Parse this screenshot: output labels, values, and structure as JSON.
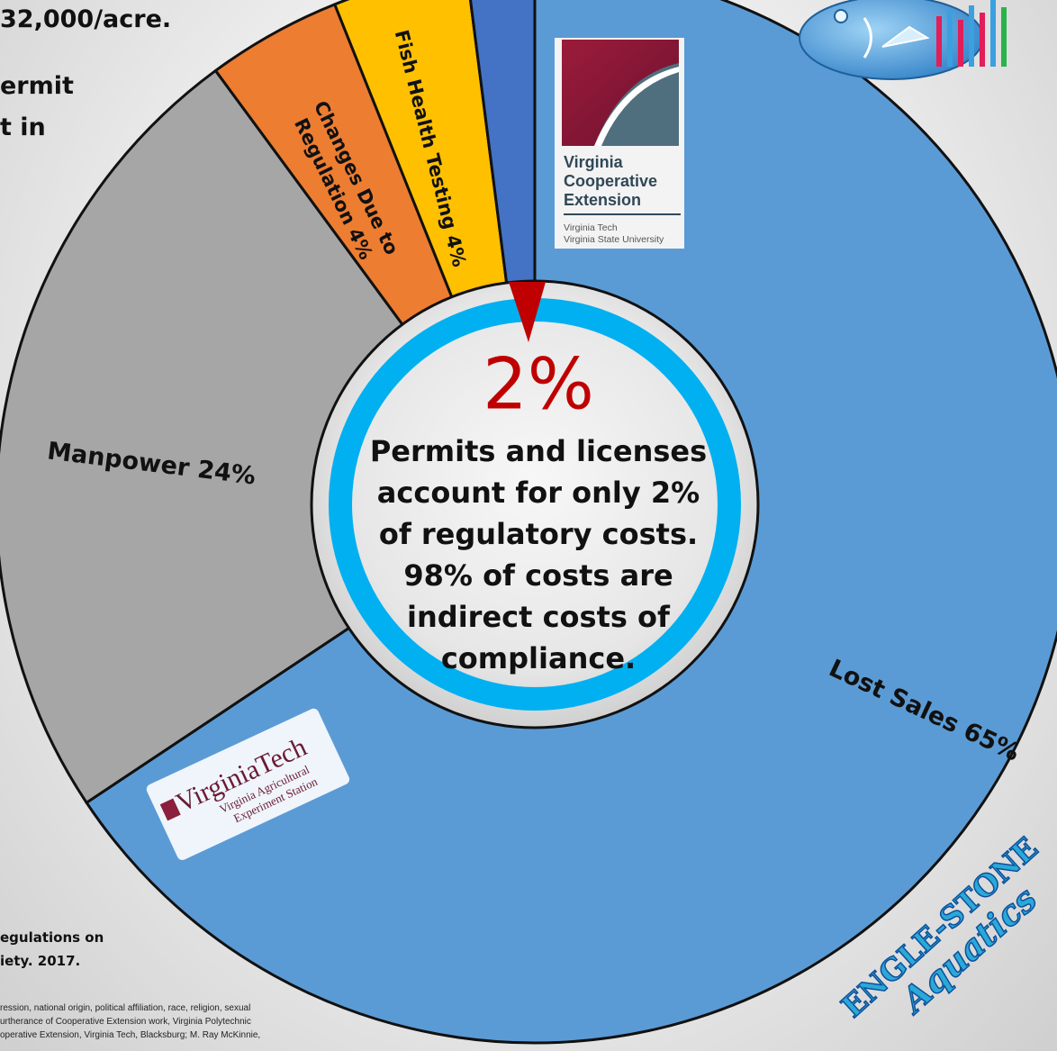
{
  "top_text": {
    "line1": "32,000/acre.",
    "line2": "ermit",
    "line3": "t in"
  },
  "citation": {
    "line1": "egulations on",
    "line2": "iety. 2017."
  },
  "fine_print": {
    "line1": "ression, national origin, political affiliation, race, religion, sexual",
    "line2": "urtherance of Cooperative Extension work, Virginia Polytechnic",
    "line3": "operative Extension, Virginia Tech, Blacksburg; M. Ray McKinnie,"
  },
  "center": {
    "percent": "2%",
    "message_lines": [
      "Permits and licenses",
      "account for only 2%",
      "of regulatory costs.",
      "98% of costs are",
      "indirect costs of",
      "compliance."
    ]
  },
  "logos": {
    "vce": {
      "line1": "Virginia",
      "line2": "Cooperative",
      "line3": "Extension",
      "sub1": "Virginia Tech",
      "sub2": "Virginia State University"
    },
    "vt": {
      "name": "VirginiaTech",
      "sub1": "Virginia Agricultural",
      "sub2": "Experiment Station"
    },
    "engle": {
      "line1": "ENGLE-STONE",
      "line2": "Aquatics"
    }
  },
  "chart_data": {
    "type": "pie",
    "style": "donut",
    "start_angle_deg": 0,
    "direction": "clockwise",
    "slices": [
      {
        "label": "Lost Sales 65%",
        "value": 65,
        "color": "#5b9bd5"
      },
      {
        "label": "Manpower 24%",
        "value": 24,
        "color": "#a6a6a6"
      },
      {
        "label": "Changes Due to Regulation 4%",
        "value": 4,
        "color": "#ed7d31"
      },
      {
        "label": "Fish Health Testing 4%",
        "value": 4,
        "color": "#ffc000"
      },
      {
        "label": "",
        "value": 2,
        "color": "#4472c4"
      }
    ],
    "highlight_value": 2,
    "colors": {
      "outline": "#111111",
      "ring": "#00b0f0",
      "pointer": "#c00000",
      "percent_text": "#c00000"
    }
  }
}
